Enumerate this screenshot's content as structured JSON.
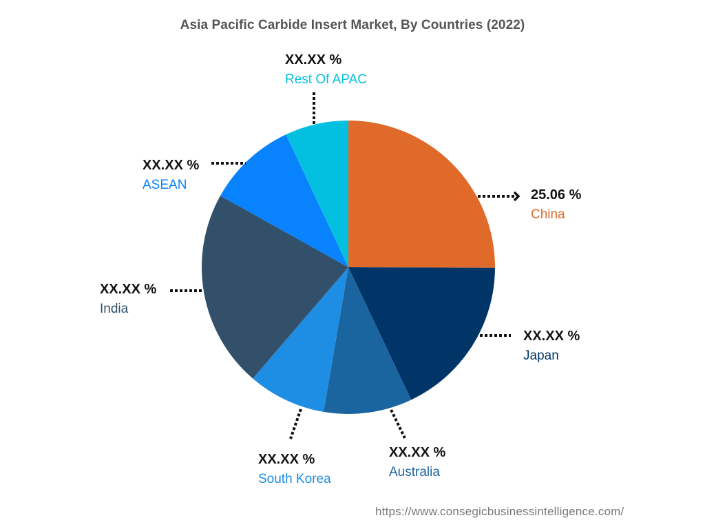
{
  "title": "Asia Pacific Carbide Insert Market, By Countries (2022)",
  "footer_url": "https://www.consegicbusinessintelligence.com/",
  "chart_data": {
    "type": "pie",
    "title": "Asia Pacific Carbide Insert Market, By Countries (2022)",
    "start_angle": "12 o'clock, clockwise",
    "categories": [
      "China",
      "Japan",
      "Australia",
      "South Korea",
      "India",
      "ASEAN",
      "Rest Of APAC"
    ],
    "values": [
      25.06,
      17.9,
      9.75,
      8.6,
      21.8,
      9.9,
      7.0
    ],
    "value_labels": [
      "25.06 %",
      "XX.XX %",
      "XX.XX %",
      "XX.XX %",
      "XX.XX %",
      "XX.XX %",
      "XX.XX %"
    ],
    "colors": [
      "#E06A2A",
      "#023567",
      "#1A649F",
      "#1E8DE4",
      "#325069",
      "#0883FD",
      "#04C0E0"
    ],
    "legend": "none (callout labels)"
  },
  "labels": {
    "china": {
      "value": "25.06 %",
      "name": "China",
      "color": "#E06A2A"
    },
    "japan": {
      "value": "XX.XX %",
      "name": "Japan",
      "color": "#023567"
    },
    "australia": {
      "value": "XX.XX %",
      "name": "Australia",
      "color": "#1A649F"
    },
    "south_korea": {
      "value": "XX.XX %",
      "name": "South Korea",
      "color": "#1E8DE4"
    },
    "india": {
      "value": "XX.XX %",
      "name": "India",
      "color": "#325069"
    },
    "asean": {
      "value": "XX.XX %",
      "name": "ASEAN",
      "color": "#0883FD"
    },
    "rest_of_apac": {
      "value": "XX.XX %",
      "name": "Rest Of APAC",
      "color": "#04C0E0"
    }
  }
}
